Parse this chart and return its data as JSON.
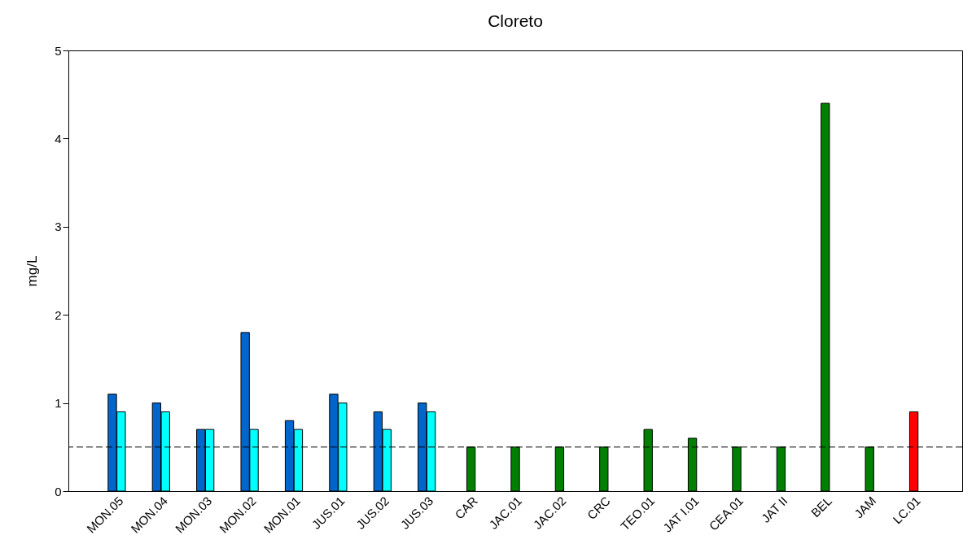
{
  "chart_data": {
    "type": "bar",
    "title": "Cloreto",
    "ylabel": "mg/L",
    "categories": [
      "MON.05",
      "MON.04",
      "MON.03",
      "MON.02",
      "MON.01",
      "JUS.01",
      "JUS.02",
      "JUS.03",
      "CAR",
      "JAC.01",
      "JAC.02",
      "CRC",
      "TEO.01",
      "JAT I.01",
      "CEA.01",
      "JAT II",
      "BEL",
      "JAM",
      "LC.01"
    ],
    "series": [
      {
        "colors": [
          "#0066cc",
          "#0066cc",
          "#0066cc",
          "#0066cc",
          "#0066cc",
          "#0066cc",
          "#0066cc",
          "#0066cc",
          "#008000",
          "#008000",
          "#008000",
          "#008000",
          "#008000",
          "#008000",
          "#008000",
          "#008000",
          "#008000",
          "#008000",
          "#ff0000"
        ],
        "values": [
          1.1,
          1.0,
          0.7,
          1.8,
          0.8,
          1.1,
          0.9,
          1.0,
          0.5,
          0.5,
          0.5,
          0.5,
          0.7,
          0.6,
          0.5,
          0.5,
          4.4,
          0.5,
          0.9
        ]
      },
      {
        "color": "#00ffff",
        "values": [
          0.9,
          0.9,
          0.7,
          0.7,
          0.7,
          1.0,
          0.7,
          0.9,
          null,
          null,
          null,
          null,
          null,
          null,
          null,
          null,
          null,
          null,
          null
        ]
      }
    ],
    "ylim": [
      0,
      5
    ],
    "yticks": [
      0,
      1,
      2,
      3,
      4,
      5
    ],
    "ref_lines": [
      {
        "axis": "y",
        "value": 0.5,
        "line_style": "dashed",
        "color": "#000000"
      }
    ],
    "grid": false
  }
}
